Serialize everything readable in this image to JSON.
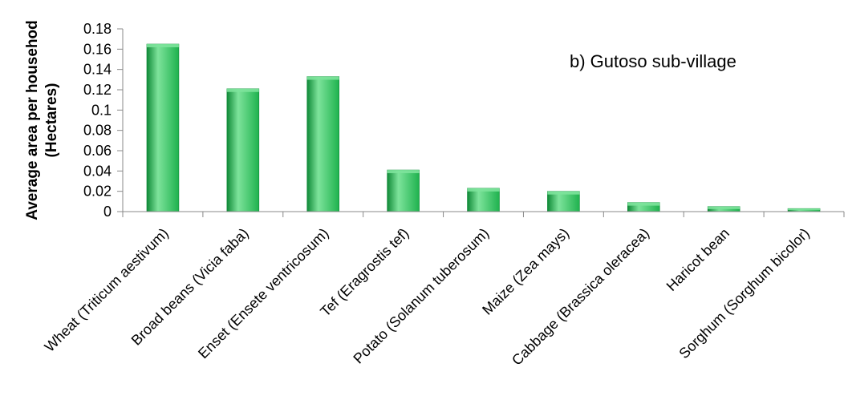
{
  "chart_data": {
    "type": "bar",
    "title": "",
    "annotation": "b) Gutoso sub-village",
    "xlabel": "",
    "ylabel_lines": [
      "Average area per househod",
      "(Hectares)"
    ],
    "ylim": [
      0,
      0.18
    ],
    "yticks": [
      0,
      0.02,
      0.04,
      0.06,
      0.08,
      0.1,
      0.12,
      0.14,
      0.16,
      0.18
    ],
    "ytick_labels": [
      "0",
      "0.02",
      "0.04",
      "0.06",
      "0.08",
      "0.1",
      "0.12",
      "0.14",
      "0.16",
      "0.18"
    ],
    "grid": false,
    "legend": "none",
    "categories": [
      "Wheat (Triticum aestivum)",
      "Broad beans (Vicia faba)",
      "Enset (Ensete ventricosum)",
      "Tef (Eragrostis tef)",
      "Potato (Solanum tuberosum)",
      "Maize (Zea mays)",
      "Cabbage (Brassica oleracea)",
      "Haricot bean",
      "Sorghum (Sorghum bicolor)"
    ],
    "values": [
      0.165,
      0.121,
      0.133,
      0.041,
      0.023,
      0.02,
      0.009,
      0.005,
      0.003
    ],
    "colors": {
      "bar_main": "#1fb24e",
      "bar_light": "#7de39b",
      "bar_dark": "#0f8a37",
      "axis": "#888888"
    }
  }
}
